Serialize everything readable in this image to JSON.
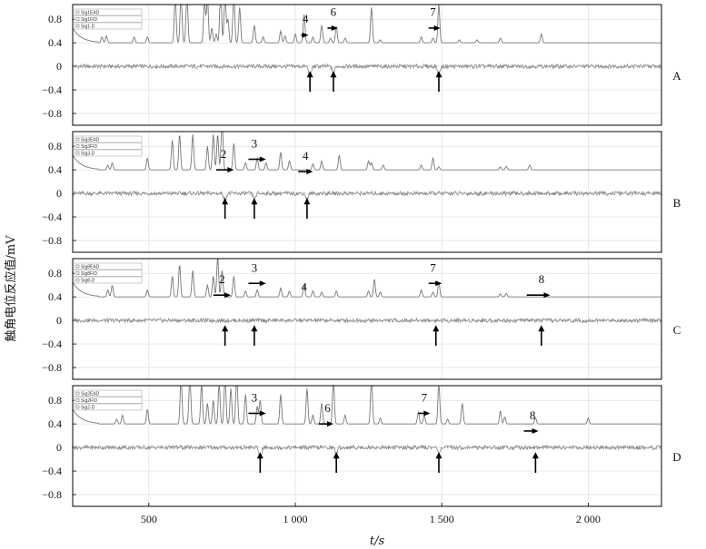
{
  "chart_data": {
    "type": "line",
    "title": "",
    "xlabel": "t/s",
    "ylabel": "触角电位反应值/mV",
    "xlim": [
      240,
      2250
    ],
    "ylim": [
      -1.0,
      1.05
    ],
    "x_ticks": [
      500,
      1000,
      1500,
      2000
    ],
    "x_tick_labels": [
      "500",
      "1 000",
      "1 500",
      "2 000"
    ],
    "y_ticks": [
      0.8,
      0.4,
      0,
      -0.4,
      -0.8
    ],
    "y_tick_labels": [
      "0.8",
      "0.4",
      "0",
      "−0.4",
      "−0.8"
    ],
    "grid": true,
    "colors": {
      "fid": "#777777",
      "ead": "#8a8a8a",
      "arrow": "#000000",
      "grid": "#dddddd",
      "axis": "#000000"
    },
    "panels": [
      {
        "label": "A",
        "legend": [
          "Sig1EAD",
          "Sig1FID",
          "Sig1-D"
        ],
        "fid_peaks": [
          {
            "x": 340,
            "h": 0.1
          },
          {
            "x": 355,
            "h": 0.12
          },
          {
            "x": 450,
            "h": 0.1
          },
          {
            "x": 495,
            "h": 0.1
          },
          {
            "x": 590,
            "h": 0.8
          },
          {
            "x": 610,
            "h": 0.9
          },
          {
            "x": 630,
            "h": 0.9
          },
          {
            "x": 690,
            "h": 0.75
          },
          {
            "x": 700,
            "h": 0.8
          },
          {
            "x": 715,
            "h": 0.25
          },
          {
            "x": 730,
            "h": 0.15
          },
          {
            "x": 745,
            "h": 0.9
          },
          {
            "x": 760,
            "h": 0.9
          },
          {
            "x": 770,
            "h": 0.4
          },
          {
            "x": 790,
            "h": 0.9
          },
          {
            "x": 810,
            "h": 0.6
          },
          {
            "x": 860,
            "h": 0.3
          },
          {
            "x": 890,
            "h": 0.1
          },
          {
            "x": 950,
            "h": 0.2
          },
          {
            "x": 965,
            "h": 0.12
          },
          {
            "x": 1000,
            "h": 0.15
          },
          {
            "x": 1030,
            "h": 0.48
          },
          {
            "x": 1060,
            "h": 0.1
          },
          {
            "x": 1090,
            "h": 0.3
          },
          {
            "x": 1120,
            "h": 0.08
          },
          {
            "x": 1140,
            "h": 0.28
          },
          {
            "x": 1170,
            "h": 0.08
          },
          {
            "x": 1260,
            "h": 0.6
          },
          {
            "x": 1290,
            "h": 0.05
          },
          {
            "x": 1430,
            "h": 0.1
          },
          {
            "x": 1470,
            "h": 0.08
          },
          {
            "x": 1490,
            "h": 0.65
          },
          {
            "x": 1560,
            "h": 0.05
          },
          {
            "x": 1620,
            "h": 0.05
          },
          {
            "x": 1700,
            "h": 0.08
          },
          {
            "x": 1840,
            "h": 0.15
          }
        ],
        "ead_dips": [
          {
            "x": 1050,
            "d": 0.18
          },
          {
            "x": 1130,
            "d": 0.12
          },
          {
            "x": 1490,
            "d": 0.14
          }
        ],
        "arrows_up_x": [
          1050,
          1130,
          1490
        ],
        "labels": [
          {
            "text": "4",
            "x": 1035,
            "y": 0.74,
            "arrow_from": 1020,
            "arrow_to": 1045,
            "arrow_y": 0.53
          },
          {
            "text": "6",
            "x": 1130,
            "y": 0.86,
            "arrow_from": 1110,
            "arrow_to": 1145,
            "arrow_y": 0.65
          },
          {
            "text": "7",
            "x": 1470,
            "y": 0.86,
            "arrow_from": 1455,
            "arrow_to": 1495,
            "arrow_y": 0.65
          }
        ]
      },
      {
        "label": "B",
        "legend": [
          "Sig3EAD",
          "Sig3FID",
          "Sig3-D"
        ],
        "fid_peaks": [
          {
            "x": 360,
            "h": 0.08
          },
          {
            "x": 375,
            "h": 0.12
          },
          {
            "x": 495,
            "h": 0.2
          },
          {
            "x": 580,
            "h": 0.5
          },
          {
            "x": 605,
            "h": 0.6
          },
          {
            "x": 650,
            "h": 0.6
          },
          {
            "x": 700,
            "h": 0.4
          },
          {
            "x": 720,
            "h": 0.6
          },
          {
            "x": 735,
            "h": 0.6
          },
          {
            "x": 750,
            "h": 0.9
          },
          {
            "x": 790,
            "h": 0.45
          },
          {
            "x": 830,
            "h": 0.12
          },
          {
            "x": 870,
            "h": 0.2
          },
          {
            "x": 900,
            "h": 0.12
          },
          {
            "x": 950,
            "h": 0.3
          },
          {
            "x": 980,
            "h": 0.15
          },
          {
            "x": 1060,
            "h": 0.1
          },
          {
            "x": 1090,
            "h": 0.15
          },
          {
            "x": 1150,
            "h": 0.25
          },
          {
            "x": 1250,
            "h": 0.15
          },
          {
            "x": 1260,
            "h": 0.12
          },
          {
            "x": 1300,
            "h": 0.08
          },
          {
            "x": 1430,
            "h": 0.08
          },
          {
            "x": 1470,
            "h": 0.2
          },
          {
            "x": 1490,
            "h": 0.05
          },
          {
            "x": 1700,
            "h": 0.05
          },
          {
            "x": 1720,
            "h": 0.06
          },
          {
            "x": 1800,
            "h": 0.08
          }
        ],
        "ead_dips": [
          {
            "x": 760,
            "d": 0.1
          },
          {
            "x": 860,
            "d": 0.1
          },
          {
            "x": 1040,
            "d": 0.1
          }
        ],
        "arrows_up_x": [
          760,
          860,
          1040
        ],
        "labels": [
          {
            "text": "2",
            "x": 755,
            "y": 0.6,
            "arrow_from": 730,
            "arrow_to": 790,
            "arrow_y": 0.4
          },
          {
            "text": "3",
            "x": 860,
            "y": 0.78,
            "arrow_from": 840,
            "arrow_to": 900,
            "arrow_y": 0.58
          },
          {
            "text": "4",
            "x": 1035,
            "y": 0.57,
            "arrow_from": 1010,
            "arrow_to": 1060,
            "arrow_y": 0.37
          }
        ]
      },
      {
        "label": "C",
        "legend": [
          "Sig8EAD",
          "Sig8FID",
          "Sig8-D"
        ],
        "fid_peaks": [
          {
            "x": 360,
            "h": 0.12
          },
          {
            "x": 375,
            "h": 0.2
          },
          {
            "x": 495,
            "h": 0.12
          },
          {
            "x": 580,
            "h": 0.35
          },
          {
            "x": 605,
            "h": 0.55
          },
          {
            "x": 650,
            "h": 0.45
          },
          {
            "x": 700,
            "h": 0.2
          },
          {
            "x": 720,
            "h": 0.35
          },
          {
            "x": 735,
            "h": 0.7
          },
          {
            "x": 750,
            "h": 0.45
          },
          {
            "x": 790,
            "h": 0.35
          },
          {
            "x": 830,
            "h": 0.1
          },
          {
            "x": 870,
            "h": 0.12
          },
          {
            "x": 950,
            "h": 0.15
          },
          {
            "x": 980,
            "h": 0.1
          },
          {
            "x": 1030,
            "h": 0.2
          },
          {
            "x": 1060,
            "h": 0.1
          },
          {
            "x": 1090,
            "h": 0.08
          },
          {
            "x": 1140,
            "h": 0.1
          },
          {
            "x": 1250,
            "h": 0.1
          },
          {
            "x": 1270,
            "h": 0.3
          },
          {
            "x": 1290,
            "h": 0.08
          },
          {
            "x": 1430,
            "h": 0.12
          },
          {
            "x": 1470,
            "h": 0.08
          },
          {
            "x": 1490,
            "h": 0.25
          },
          {
            "x": 1700,
            "h": 0.05
          },
          {
            "x": 1720,
            "h": 0.06
          }
        ],
        "ead_dips": [],
        "arrows_up_x": [
          760,
          860,
          1480,
          1840
        ],
        "labels": [
          {
            "text": "2",
            "x": 750,
            "y": 0.63,
            "arrow_from": 720,
            "arrow_to": 780,
            "arrow_y": 0.43
          },
          {
            "text": "3",
            "x": 860,
            "y": 0.83,
            "arrow_from": 840,
            "arrow_to": 900,
            "arrow_y": 0.63
          },
          {
            "text": "4",
            "x": 1030,
            "y": 0.5,
            "arrow_from": null,
            "arrow_to": null,
            "arrow_y": null
          },
          {
            "text": "7",
            "x": 1470,
            "y": 0.83,
            "arrow_from": 1455,
            "arrow_to": 1500,
            "arrow_y": 0.63
          },
          {
            "text": "8",
            "x": 1840,
            "y": 0.63,
            "arrow_from": 1790,
            "arrow_to": 1870,
            "arrow_y": 0.43
          }
        ]
      },
      {
        "label": "D",
        "legend": [
          "Sig2EAD",
          "Sig2FID",
          "Sig2-D"
        ],
        "fid_peaks": [
          {
            "x": 390,
            "h": 0.08
          },
          {
            "x": 410,
            "h": 0.15
          },
          {
            "x": 495,
            "h": 0.25
          },
          {
            "x": 610,
            "h": 0.8
          },
          {
            "x": 640,
            "h": 0.9
          },
          {
            "x": 680,
            "h": 0.7
          },
          {
            "x": 700,
            "h": 0.35
          },
          {
            "x": 720,
            "h": 0.4
          },
          {
            "x": 740,
            "h": 0.7
          },
          {
            "x": 760,
            "h": 0.9
          },
          {
            "x": 780,
            "h": 0.6
          },
          {
            "x": 800,
            "h": 0.9
          },
          {
            "x": 830,
            "h": 0.5
          },
          {
            "x": 870,
            "h": 0.3
          },
          {
            "x": 880,
            "h": 0.4
          },
          {
            "x": 950,
            "h": 0.5
          },
          {
            "x": 1040,
            "h": 0.6
          },
          {
            "x": 1060,
            "h": 0.15
          },
          {
            "x": 1090,
            "h": 0.35
          },
          {
            "x": 1130,
            "h": 0.75
          },
          {
            "x": 1170,
            "h": 0.15
          },
          {
            "x": 1260,
            "h": 0.8
          },
          {
            "x": 1290,
            "h": 0.1
          },
          {
            "x": 1420,
            "h": 0.2
          },
          {
            "x": 1440,
            "h": 0.15
          },
          {
            "x": 1490,
            "h": 0.7
          },
          {
            "x": 1520,
            "h": 0.08
          },
          {
            "x": 1570,
            "h": 0.35
          },
          {
            "x": 1700,
            "h": 0.22
          },
          {
            "x": 1715,
            "h": 0.12
          },
          {
            "x": 1820,
            "h": 0.1
          },
          {
            "x": 2000,
            "h": 0.1
          }
        ],
        "ead_dips": [
          {
            "x": 880,
            "d": 0.2
          },
          {
            "x": 1140,
            "d": 0.1
          },
          {
            "x": 1490,
            "d": 0.08
          }
        ],
        "arrows_up_x": [
          880,
          1140,
          1490,
          1820
        ],
        "labels": [
          {
            "text": "3",
            "x": 860,
            "y": 0.78,
            "arrow_from": 840,
            "arrow_to": 900,
            "arrow_y": 0.58
          },
          {
            "text": "6",
            "x": 1110,
            "y": 0.6,
            "arrow_from": 1080,
            "arrow_to": 1130,
            "arrow_y": 0.4
          },
          {
            "text": "7",
            "x": 1440,
            "y": 0.78,
            "arrow_from": 1420,
            "arrow_to": 1460,
            "arrow_y": 0.58
          },
          {
            "text": "8",
            "x": 1810,
            "y": 0.48,
            "arrow_from": 1780,
            "arrow_to": 1830,
            "arrow_y": 0.28
          }
        ]
      }
    ]
  }
}
